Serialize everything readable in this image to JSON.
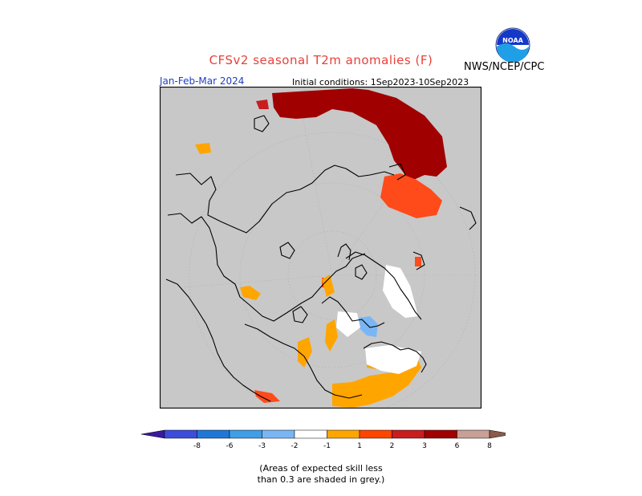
{
  "header": {
    "title": "CFSv2 seasonal T2m anomalies (F)",
    "agency": "NWS/NCEP/CPC",
    "period": "Jan-Feb-Mar 2024",
    "initial_conditions": "Initial conditions: 1Sep2023-10Sep2023",
    "logo_text": "NOAA"
  },
  "legend": {
    "labels": [
      "-8",
      "-6",
      "-3",
      "-2",
      "-1",
      "1",
      "2",
      "3",
      "6",
      "8"
    ],
    "colors": [
      "#3a1a9e",
      "#3c4ddc",
      "#1f78d8",
      "#3f9ee6",
      "#7ab6f4",
      "#ffffff",
      "#ffa500",
      "#ff4500",
      "#c81e1e",
      "#a00000",
      "#c8a095",
      "#8a5a4a"
    ]
  },
  "map": {
    "background": "#c8c8c8",
    "colors": {
      "warm3": "#a00000",
      "warm2": "#ff4a1a",
      "warm1": "#ffa500",
      "cool1": "#7ab6f4",
      "neutral": "#ffffff"
    }
  },
  "footnote": {
    "line1": "(Areas of expected skill less",
    "line2": "than 0.3 are shaded in grey.)"
  }
}
